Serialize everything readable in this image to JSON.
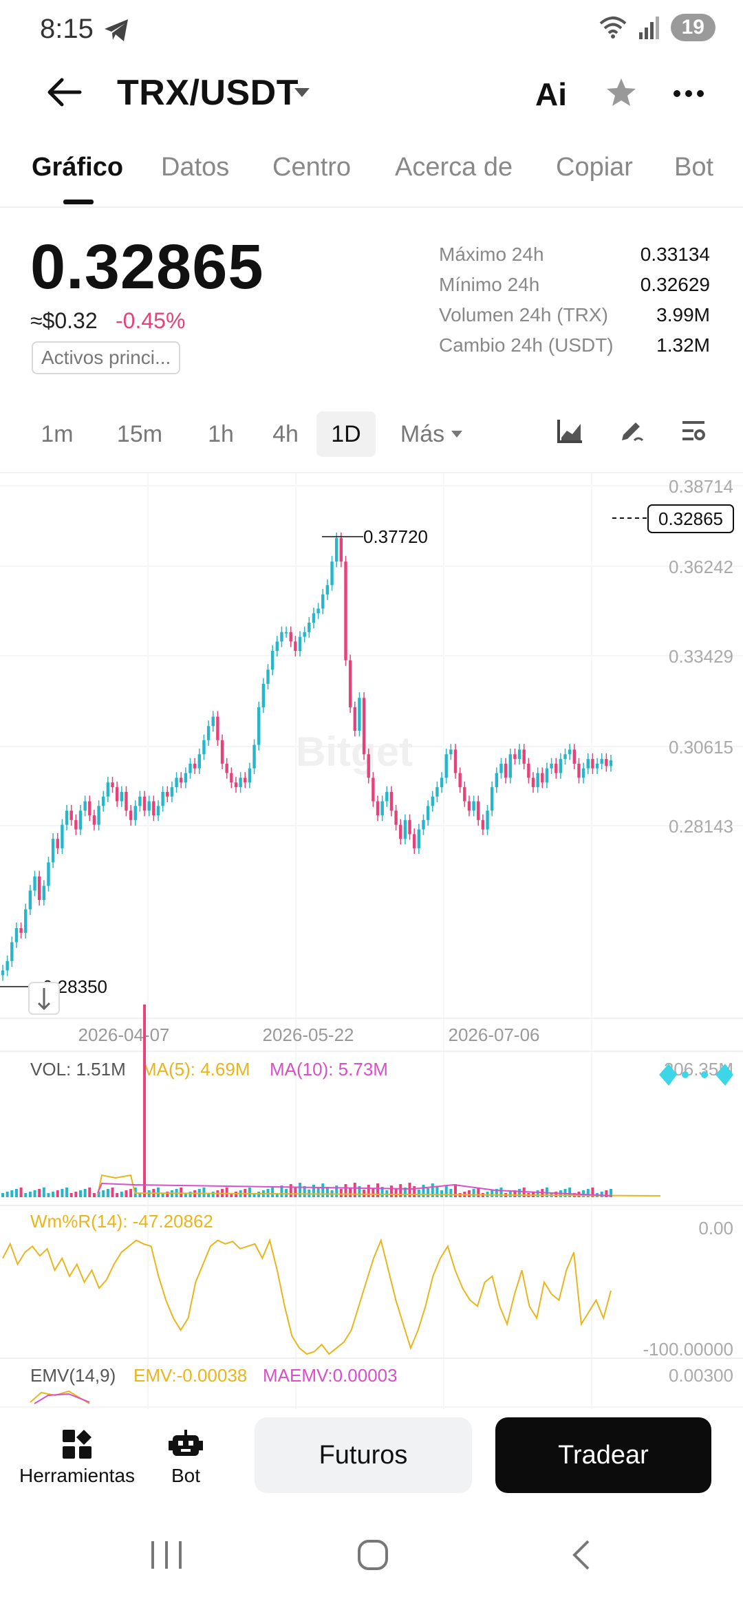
{
  "status_bar": {
    "time": "8:15",
    "battery": "19"
  },
  "header": {
    "pair": "TRX/USDT",
    "ai_label": "Ai"
  },
  "tabs": [
    {
      "label": "Gráfico",
      "active": true
    },
    {
      "label": "Datos",
      "active": false
    },
    {
      "label": "Centro",
      "active": false
    },
    {
      "label": "Acerca de",
      "active": false
    },
    {
      "label": "Copiar",
      "active": false
    },
    {
      "label": "Bot",
      "active": false
    }
  ],
  "price": {
    "last": "0.32865",
    "usd": "≈$0.32",
    "change": "-0.45%",
    "tag": "Activos princi..."
  },
  "stats": [
    {
      "label": "Máximo 24h",
      "value": "0.33134"
    },
    {
      "label": "Mínimo 24h",
      "value": "0.32629"
    },
    {
      "label": "Volumen 24h (TRX)",
      "value": "3.99M"
    },
    {
      "label": "Cambio 24h (USDT)",
      "value": "1.32M"
    }
  ],
  "intervals": {
    "items": [
      "1m",
      "15m",
      "1h",
      "4h",
      "1D"
    ],
    "active": "1D",
    "more_label": "Más"
  },
  "watermark": "Bitget",
  "chart_data": [
    {
      "type": "candlestick",
      "ylim": [
        0.28143,
        0.38714
      ],
      "y_ticks": [
        "0.38714",
        "0.36242",
        "0.33429",
        "0.30615",
        "0.28143"
      ],
      "x_ticks": [
        "2026-04-07",
        "2026-05-22",
        "2026-07-06"
      ],
      "max_label": "0.37720",
      "min_label": "0.28350",
      "last_label": "0.32865",
      "closes": [
        0.284,
        0.286,
        0.29,
        0.293,
        0.292,
        0.297,
        0.301,
        0.304,
        0.299,
        0.302,
        0.307,
        0.312,
        0.31,
        0.315,
        0.318,
        0.316,
        0.314,
        0.318,
        0.32,
        0.317,
        0.315,
        0.319,
        0.321,
        0.324,
        0.323,
        0.32,
        0.322,
        0.318,
        0.316,
        0.319,
        0.321,
        0.318,
        0.32,
        0.317,
        0.319,
        0.322,
        0.321,
        0.323,
        0.325,
        0.324,
        0.326,
        0.328,
        0.327,
        0.33,
        0.333,
        0.336,
        0.338,
        0.333,
        0.328,
        0.326,
        0.324,
        0.323,
        0.325,
        0.324,
        0.327,
        0.332,
        0.34,
        0.345,
        0.348,
        0.352,
        0.354,
        0.356,
        0.356,
        0.354,
        0.352,
        0.355,
        0.356,
        0.358,
        0.36,
        0.361,
        0.364,
        0.366,
        0.371,
        0.376,
        0.371,
        0.35,
        0.34,
        0.335,
        0.342,
        0.33,
        0.325,
        0.32,
        0.317,
        0.32,
        0.322,
        0.318,
        0.315,
        0.312,
        0.316,
        0.313,
        0.31,
        0.314,
        0.316,
        0.319,
        0.321,
        0.323,
        0.325,
        0.33,
        0.331,
        0.326,
        0.323,
        0.32,
        0.318,
        0.32,
        0.316,
        0.314,
        0.318,
        0.323,
        0.326,
        0.328,
        0.325,
        0.33,
        0.329,
        0.331,
        0.328,
        0.325,
        0.323,
        0.326,
        0.324,
        0.327,
        0.328,
        0.326,
        0.329,
        0.33,
        0.331,
        0.328,
        0.325,
        0.327,
        0.329,
        0.327,
        0.328,
        0.329,
        0.3275,
        0.3287
      ]
    },
    {
      "type": "bar",
      "title": "VOL",
      "legend": {
        "vol": "VOL: 1.51M",
        "ma5": "MA(5): 4.69M",
        "ma10": "MA(10): 5.73M"
      },
      "y_tick": "206.35M"
    },
    {
      "type": "line",
      "title": "Wm%R(14)",
      "legend": "Wm%R(14): -47.20862",
      "ylim": [
        -100,
        0
      ],
      "y_ticks": [
        "0.00",
        "-100.00000"
      ],
      "values": [
        -20,
        -8,
        -25,
        -15,
        -10,
        -18,
        -12,
        -30,
        -20,
        -35,
        -25,
        -40,
        -30,
        -45,
        -38,
        -25,
        -15,
        -10,
        -5,
        -8,
        -10,
        -35,
        -55,
        -70,
        -80,
        -70,
        -40,
        -25,
        -10,
        -5,
        -8,
        -6,
        -12,
        -10,
        -8,
        -20,
        -5,
        -30,
        -60,
        -85,
        -95,
        -100,
        -98,
        -92,
        -100,
        -95,
        -90,
        -80,
        -60,
        -40,
        -20,
        -5,
        -30,
        -55,
        -75,
        -95,
        -80,
        -60,
        -35,
        -20,
        -10,
        -30,
        -45,
        -55,
        -60,
        -40,
        -35,
        -60,
        -75,
        -50,
        -30,
        -60,
        -70,
        -40,
        -50,
        -55,
        -30,
        -15,
        -75,
        -65,
        -55,
        -70,
        -47
      ]
    },
    {
      "type": "line",
      "title": "EMV(14,9)",
      "legend": {
        "name": "EMV(14,9)",
        "emv": "EMV:-0.00038",
        "maemv": "MAEMV:0.00003"
      },
      "y_ticks": [
        "0.00300"
      ]
    }
  ],
  "bottom_bar": {
    "tools_label": "Herramientas",
    "bot_label": "Bot",
    "futures_label": "Futuros",
    "trade_label": "Tradear"
  },
  "colors": {
    "up": "#26b5c9",
    "down": "#e5427a",
    "ma5": "#e8b51c",
    "ma10": "#d94fc7",
    "text_muted": "#888888"
  }
}
